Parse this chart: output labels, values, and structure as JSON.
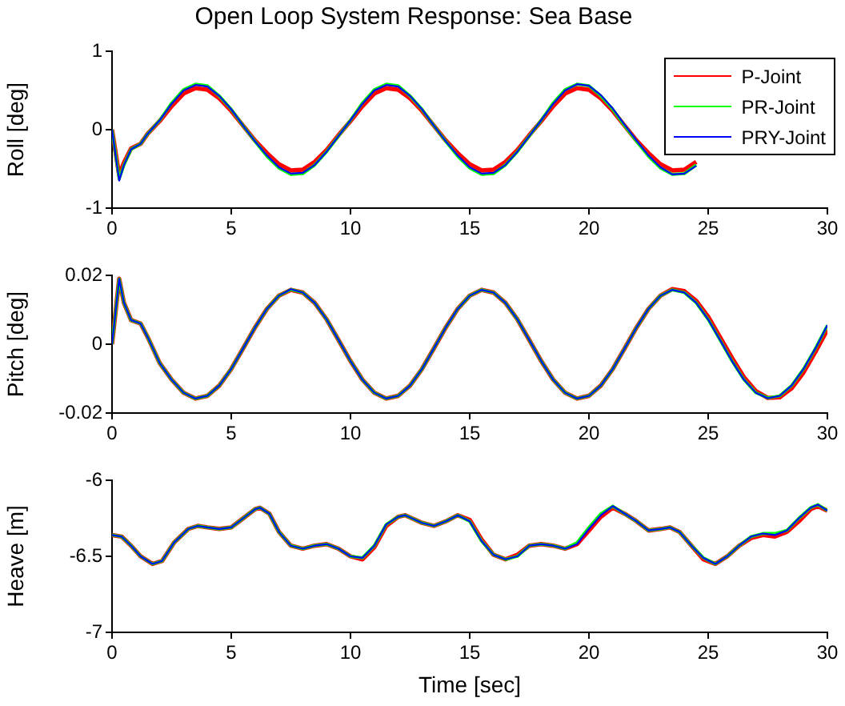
{
  "chart_data": [
    {
      "type": "line",
      "title": "Open Loop System Response: Sea Base",
      "ylabel": "Roll [deg]",
      "xlim": [
        0,
        30
      ],
      "xticks": [
        0,
        5,
        10,
        15,
        20,
        25,
        30
      ],
      "ylim": [
        -1,
        1
      ],
      "yticks": [
        -1,
        0,
        1
      ],
      "grid": false,
      "legend": "top right",
      "marker": "none",
      "line_style": "solid",
      "x": [
        0,
        0.3,
        0.5,
        0.8,
        1.2,
        1.5,
        2,
        2.5,
        3,
        3.5,
        4,
        4.5,
        5,
        5.5,
        6,
        6.5,
        7,
        7.5,
        8,
        8.5,
        9,
        9.5,
        10,
        10.5,
        11,
        11.5,
        12,
        12.5,
        13,
        13.5,
        14,
        14.5,
        15,
        15.5,
        16,
        16.5,
        17,
        17.5,
        18,
        18.5,
        19,
        19.5,
        20,
        20.5,
        21,
        21.5,
        22,
        22.5,
        23,
        23.5,
        24,
        24.5
      ],
      "series": [
        {
          "name": "P-Joint",
          "color": "#ff0000",
          "values": [
            0,
            -0.58,
            -0.42,
            -0.24,
            -0.18,
            -0.05,
            0.11,
            0.3,
            0.46,
            0.53,
            0.51,
            0.4,
            0.24,
            0.05,
            -0.14,
            -0.3,
            -0.44,
            -0.52,
            -0.51,
            -0.41,
            -0.26,
            -0.07,
            0.11,
            0.3,
            0.46,
            0.53,
            0.51,
            0.4,
            0.24,
            0.05,
            -0.14,
            -0.3,
            -0.44,
            -0.52,
            -0.51,
            -0.41,
            -0.26,
            -0.07,
            0.11,
            0.3,
            0.46,
            0.53,
            0.51,
            0.4,
            0.24,
            0.05,
            -0.14,
            -0.3,
            -0.44,
            -0.52,
            -0.51,
            -0.41
          ]
        },
        {
          "name": "PR-Joint",
          "color": "#00ff00",
          "values": [
            0,
            -0.63,
            -0.45,
            -0.25,
            -0.18,
            -0.05,
            0.12,
            0.34,
            0.51,
            0.58,
            0.56,
            0.43,
            0.26,
            0.05,
            -0.15,
            -0.34,
            -0.49,
            -0.57,
            -0.56,
            -0.45,
            -0.28,
            -0.08,
            0.12,
            0.34,
            0.51,
            0.58,
            0.56,
            0.43,
            0.26,
            0.05,
            -0.15,
            -0.34,
            -0.49,
            -0.57,
            -0.56,
            -0.45,
            -0.28,
            -0.08,
            0.12,
            0.34,
            0.51,
            0.58,
            0.56,
            0.43,
            0.26,
            0.05,
            -0.15,
            -0.34,
            -0.49,
            -0.57,
            -0.56,
            -0.45
          ]
        },
        {
          "name": "PRY-Joint",
          "color": "#0000ff",
          "values": [
            0,
            -0.65,
            -0.45,
            -0.25,
            -0.18,
            -0.05,
            0.12,
            0.33,
            0.5,
            0.57,
            0.55,
            0.43,
            0.26,
            0.05,
            -0.15,
            -0.33,
            -0.48,
            -0.56,
            -0.55,
            -0.45,
            -0.28,
            -0.08,
            0.12,
            0.33,
            0.5,
            0.57,
            0.55,
            0.43,
            0.26,
            0.05,
            -0.15,
            -0.33,
            -0.48,
            -0.56,
            -0.55,
            -0.45,
            -0.28,
            -0.08,
            0.12,
            0.33,
            0.5,
            0.58,
            0.56,
            0.44,
            0.27,
            0.06,
            -0.14,
            -0.33,
            -0.48,
            -0.57,
            -0.56,
            -0.46
          ]
        }
      ]
    },
    {
      "type": "line",
      "ylabel": "Pitch [deg]",
      "xlim": [
        0,
        30
      ],
      "xticks": [
        0,
        5,
        10,
        15,
        20,
        25,
        30
      ],
      "ylim": [
        -0.02,
        0.02
      ],
      "yticks": [
        -0.02,
        0,
        0.02
      ],
      "grid": false,
      "marker": "none",
      "line_style": "solid",
      "x": [
        0,
        0.3,
        0.5,
        0.8,
        1.2,
        1.5,
        2,
        2.5,
        3,
        3.5,
        4,
        4.5,
        5,
        5.5,
        6,
        6.5,
        7,
        7.5,
        8,
        8.5,
        9,
        9.5,
        10,
        10.5,
        11,
        11.5,
        12,
        12.5,
        13,
        13.5,
        14,
        14.5,
        15,
        15.5,
        16,
        16.5,
        17,
        17.5,
        18,
        18.5,
        19,
        19.5,
        20,
        20.5,
        21,
        21.5,
        22,
        22.5,
        23,
        23.5,
        24,
        24.5,
        25,
        25.5,
        26,
        26.5,
        27,
        27.5,
        28,
        28.5,
        29,
        29.5,
        30
      ],
      "series": [
        {
          "color": "#ff0000",
          "values": [
            0,
            0.019,
            0.012,
            0.007,
            0.006,
            0.002,
            -0.0055,
            -0.0103,
            -0.0141,
            -0.0158,
            -0.015,
            -0.012,
            -0.0072,
            -0.0012,
            0.0049,
            0.0103,
            0.0141,
            0.0158,
            0.015,
            0.012,
            0.0072,
            0.0012,
            -0.0049,
            -0.0103,
            -0.0141,
            -0.0158,
            -0.015,
            -0.012,
            -0.0072,
            -0.0012,
            0.0049,
            0.0103,
            0.0141,
            0.0158,
            0.015,
            0.012,
            0.0072,
            0.0012,
            -0.0049,
            -0.0103,
            -0.0141,
            -0.0158,
            -0.015,
            -0.012,
            -0.0072,
            -0.0012,
            0.0049,
            0.0103,
            0.0141,
            0.016,
            0.0154,
            0.0126,
            0.008,
            0.002,
            -0.004,
            -0.0096,
            -0.0136,
            -0.0156,
            -0.0154,
            -0.0128,
            -0.0082,
            -0.0022,
            0.0042
          ]
        },
        {
          "color": "#00ff00",
          "values": [
            0,
            0.019,
            0.012,
            0.007,
            0.006,
            0.002,
            -0.0055,
            -0.0103,
            -0.0141,
            -0.0158,
            -0.015,
            -0.012,
            -0.0072,
            -0.0012,
            0.0049,
            0.0103,
            0.0141,
            0.0159,
            0.015,
            0.012,
            0.0072,
            0.0012,
            -0.0049,
            -0.0103,
            -0.0141,
            -0.0158,
            -0.015,
            -0.012,
            -0.0072,
            -0.0012,
            0.0049,
            0.0103,
            0.0141,
            0.0158,
            0.015,
            0.012,
            0.0072,
            0.0012,
            -0.0049,
            -0.0103,
            -0.0141,
            -0.0158,
            -0.015,
            -0.012,
            -0.0072,
            -0.0012,
            0.0049,
            0.0103,
            0.0141,
            0.0158,
            0.015,
            0.012,
            0.0072,
            0.0012,
            -0.0049,
            -0.0103,
            -0.0141,
            -0.0156,
            -0.015,
            -0.012,
            -0.0072,
            -0.0012,
            0.0055
          ]
        },
        {
          "color": "#0000ff",
          "values": [
            0,
            0.019,
            0.012,
            0.007,
            0.006,
            0.002,
            -0.0055,
            -0.0103,
            -0.0141,
            -0.0158,
            -0.015,
            -0.012,
            -0.0072,
            -0.0012,
            0.0049,
            0.0103,
            0.0141,
            0.016,
            0.015,
            0.012,
            0.0072,
            0.0012,
            -0.0049,
            -0.0103,
            -0.0141,
            -0.0158,
            -0.015,
            -0.012,
            -0.0072,
            -0.0012,
            0.0049,
            0.0103,
            0.0141,
            0.0158,
            0.015,
            0.012,
            0.0072,
            0.0012,
            -0.0049,
            -0.0103,
            -0.0141,
            -0.0158,
            -0.015,
            -0.012,
            -0.0072,
            -0.0012,
            0.0049,
            0.0103,
            0.0141,
            0.0158,
            0.015,
            0.012,
            0.0072,
            0.0012,
            -0.0049,
            -0.0103,
            -0.0141,
            -0.0157,
            -0.015,
            -0.012,
            -0.0072,
            -0.0012,
            0.0055
          ]
        }
      ]
    },
    {
      "type": "line",
      "ylabel": "Heave [m]",
      "xlabel": "Time [sec]",
      "xlim": [
        0,
        30
      ],
      "xticks": [
        0,
        5,
        10,
        15,
        20,
        25,
        30
      ],
      "ylim": [
        -7,
        -6
      ],
      "yticks": [
        -7,
        -6.5,
        -6
      ],
      "grid": false,
      "marker": "none",
      "line_style": "solid",
      "x": [
        0,
        0.4,
        0.8,
        1.2,
        1.7,
        2.1,
        2.6,
        3.2,
        3.6,
        4,
        4.5,
        5,
        5.5,
        6,
        6.2,
        6.6,
        7,
        7.5,
        8,
        8.5,
        9,
        9.5,
        10,
        10.5,
        11,
        11.5,
        12,
        12.3,
        13,
        13.5,
        14,
        14.5,
        15,
        15.5,
        16,
        16.5,
        17,
        17.5,
        18,
        18.5,
        19,
        19.5,
        20,
        20.5,
        21,
        21.5,
        22,
        22.5,
        23,
        23.4,
        23.8,
        24.3,
        24.8,
        25.3,
        25.8,
        26.3,
        26.8,
        27.3,
        27.8,
        28.3,
        28.8,
        29.3,
        29.6,
        30
      ],
      "series": [
        {
          "color": "#ff0000",
          "values": [
            -6.36,
            -6.37,
            -6.43,
            -6.5,
            -6.55,
            -6.53,
            -6.41,
            -6.32,
            -6.3,
            -6.31,
            -6.32,
            -6.31,
            -6.25,
            -6.19,
            -6.18,
            -6.22,
            -6.34,
            -6.43,
            -6.45,
            -6.43,
            -6.42,
            -6.45,
            -6.5,
            -6.52,
            -6.44,
            -6.3,
            -6.24,
            -6.23,
            -6.28,
            -6.3,
            -6.27,
            -6.23,
            -6.26,
            -6.39,
            -6.49,
            -6.52,
            -6.49,
            -6.43,
            -6.42,
            -6.43,
            -6.45,
            -6.42,
            -6.33,
            -6.24,
            -6.18,
            -6.22,
            -6.27,
            -6.33,
            -6.32,
            -6.31,
            -6.34,
            -6.43,
            -6.52,
            -6.55,
            -6.5,
            -6.43,
            -6.38,
            -6.36,
            -6.37,
            -6.34,
            -6.27,
            -6.19,
            -6.17,
            -6.2
          ]
        },
        {
          "color": "#00ff00",
          "values": [
            -6.36,
            -6.37,
            -6.43,
            -6.5,
            -6.55,
            -6.53,
            -6.41,
            -6.32,
            -6.3,
            -6.31,
            -6.32,
            -6.31,
            -6.25,
            -6.19,
            -6.18,
            -6.22,
            -6.34,
            -6.43,
            -6.45,
            -6.43,
            -6.42,
            -6.45,
            -6.5,
            -6.51,
            -6.43,
            -6.29,
            -6.24,
            -6.23,
            -6.28,
            -6.3,
            -6.27,
            -6.23,
            -6.27,
            -6.4,
            -6.49,
            -6.52,
            -6.5,
            -6.43,
            -6.42,
            -6.43,
            -6.45,
            -6.41,
            -6.31,
            -6.22,
            -6.17,
            -6.22,
            -6.27,
            -6.33,
            -6.32,
            -6.31,
            -6.34,
            -6.43,
            -6.51,
            -6.55,
            -6.5,
            -6.43,
            -6.37,
            -6.35,
            -6.35,
            -6.33,
            -6.25,
            -6.18,
            -6.16,
            -6.2
          ]
        },
        {
          "color": "#0000ff",
          "values": [
            -6.36,
            -6.37,
            -6.43,
            -6.5,
            -6.55,
            -6.53,
            -6.41,
            -6.32,
            -6.3,
            -6.31,
            -6.32,
            -6.31,
            -6.25,
            -6.19,
            -6.18,
            -6.22,
            -6.34,
            -6.43,
            -6.45,
            -6.43,
            -6.42,
            -6.45,
            -6.5,
            -6.51,
            -6.43,
            -6.29,
            -6.24,
            -6.23,
            -6.28,
            -6.3,
            -6.27,
            -6.23,
            -6.27,
            -6.4,
            -6.49,
            -6.52,
            -6.5,
            -6.43,
            -6.42,
            -6.43,
            -6.45,
            -6.42,
            -6.32,
            -6.23,
            -6.17,
            -6.22,
            -6.27,
            -6.33,
            -6.32,
            -6.31,
            -6.34,
            -6.43,
            -6.51,
            -6.55,
            -6.5,
            -6.43,
            -6.37,
            -6.35,
            -6.36,
            -6.33,
            -6.25,
            -6.18,
            -6.16,
            -6.2
          ]
        }
      ]
    }
  ]
}
